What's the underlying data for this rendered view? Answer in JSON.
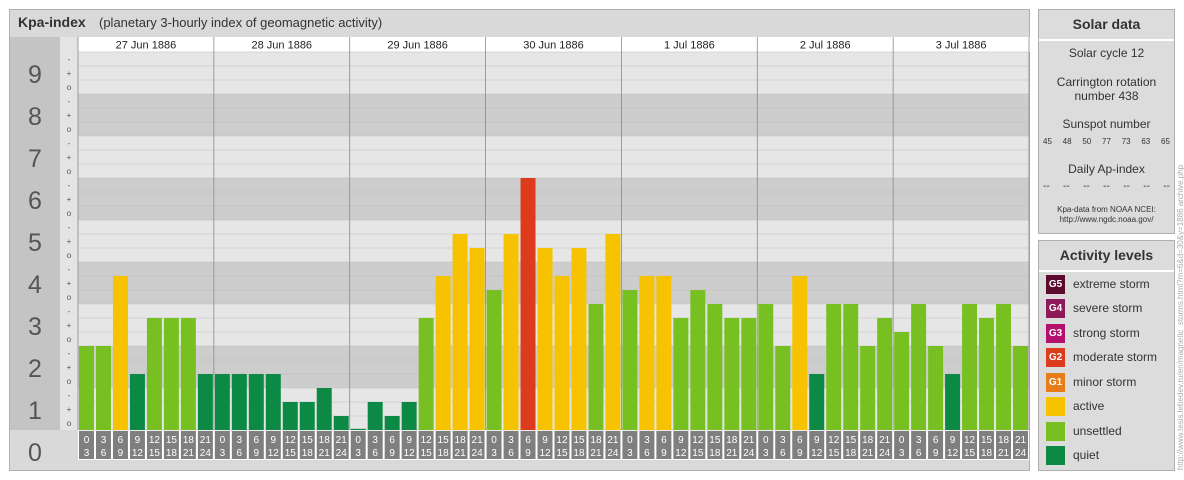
{
  "title": "Kpa-index",
  "subtitle": "(planetary 3-hourly index of geomagnetic activity)",
  "chart_data": {
    "type": "bar",
    "title": "Kpa-index",
    "subtitle": "(planetary 3-hourly index of geomagnetic activity)",
    "ylim": [
      0,
      9
    ],
    "y_ticks": [
      "0",
      "1",
      "2",
      "3",
      "4",
      "5",
      "6",
      "7",
      "8",
      "9"
    ],
    "minor_tick_marks": [
      "o",
      "+",
      "-"
    ],
    "days": [
      "27 Jun 1886",
      "28 Jun 1886",
      "29 Jun 1886",
      "30 Jun 1886",
      "1 Jul 1886",
      "2 Jul 1886",
      "3 Jul 1886"
    ],
    "interval_start_labels": [
      "0",
      "3",
      "6",
      "9",
      "12",
      "15",
      "18",
      "21"
    ],
    "interval_end_labels": [
      "3",
      "6",
      "9",
      "12",
      "15",
      "18",
      "21",
      "24"
    ],
    "values": [
      2.0,
      2.0,
      3.667,
      1.333,
      2.667,
      2.667,
      2.667,
      1.333,
      1.333,
      1.333,
      1.333,
      1.333,
      0.667,
      0.667,
      1.0,
      0.333,
      0.0,
      0.667,
      0.333,
      0.667,
      2.667,
      3.667,
      4.667,
      4.333,
      3.333,
      4.667,
      6.0,
      4.333,
      3.667,
      4.333,
      3.0,
      4.667,
      3.333,
      3.667,
      3.667,
      2.667,
      3.333,
      3.0,
      2.667,
      2.667,
      3.0,
      2.0,
      3.667,
      1.333,
      3.0,
      3.0,
      2.0,
      2.667,
      2.333,
      3.0,
      2.0,
      1.333,
      3.0,
      2.667,
      3.0,
      2.0
    ],
    "grid": true
  },
  "solar_data": {
    "title": "Solar data",
    "solar_cycle": "Solar cycle 12",
    "carrington_line1": "Carrington rotation",
    "carrington_line2": "number 438",
    "sunspot_label": "Sunspot number",
    "sunspot_values": [
      "45",
      "48",
      "50",
      "77",
      "73",
      "63",
      "65"
    ],
    "ap_label": "Daily Ap-index",
    "ap_values": [
      "--",
      "--",
      "--",
      "--",
      "--",
      "--",
      "--"
    ],
    "source_line1": "Kpa-data from NOAA NCEI:",
    "source_line2": "http://www.ngdc.noaa.gov/"
  },
  "activity_levels": {
    "title": "Activity levels",
    "items": [
      {
        "code": "G5",
        "label": "extreme storm",
        "color": "#5a0b2e"
      },
      {
        "code": "G4",
        "label": "severe storm",
        "color": "#8e1a5a"
      },
      {
        "code": "G3",
        "label": "strong storm",
        "color": "#b5106d"
      },
      {
        "code": "G2",
        "label": "moderate storm",
        "color": "#dc3c1c"
      },
      {
        "code": "G1",
        "label": "minor storm",
        "color": "#e67c1a"
      },
      {
        "code": "",
        "label": "active",
        "color": "#f7c300"
      },
      {
        "code": "",
        "label": "unsettled",
        "color": "#78c022"
      },
      {
        "code": "",
        "label": "quiet",
        "color": "#0c8a45"
      }
    ]
  },
  "level_colors": {
    "quiet": "#0c8a45",
    "unsettled": "#78c022",
    "active": "#f7c300",
    "g1": "#e67c1a",
    "g2": "#dc3c1c",
    "g3": "#b5106d"
  },
  "watermark": "http://www.tesis.lebedev.ru/en/magnetic_storms.html?m=6&d=30&y=1886 archive.php"
}
